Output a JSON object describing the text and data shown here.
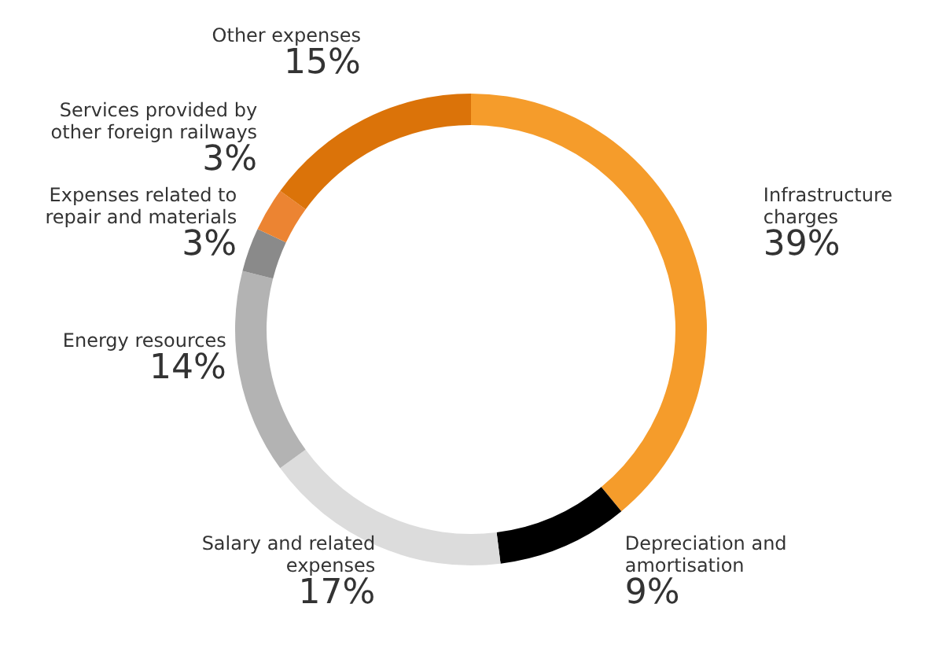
{
  "chart_data": {
    "type": "donut",
    "categories": [
      "Infrastructure charges",
      "Depreciation and amortisation",
      "Salary and related expenses",
      "Energy resources",
      "Expenses related to repair and materials",
      "Services provided by other foreign railways",
      "Other expenses"
    ],
    "values": [
      39,
      9,
      17,
      14,
      3,
      3,
      15
    ],
    "value_labels": [
      "39%",
      "9%",
      "17%",
      "14%",
      "3%",
      "3%",
      "15%"
    ],
    "colors": [
      "#f59c2b",
      "#000000",
      "#dcdcdc",
      "#b3b3b3",
      "#8a8a8a",
      "#ec8432",
      "#db7309"
    ]
  }
}
